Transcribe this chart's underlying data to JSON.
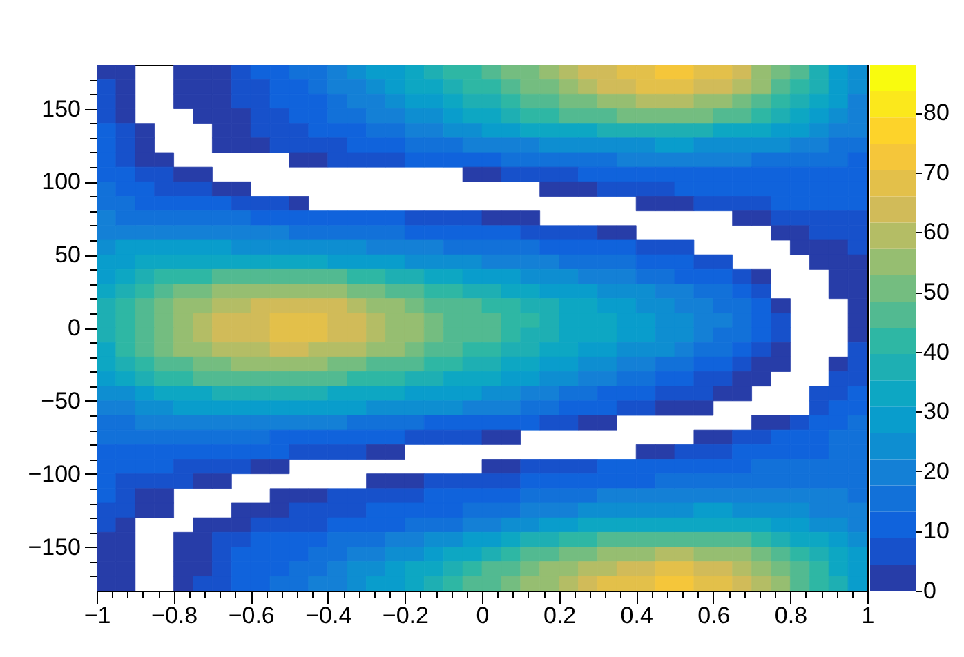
{
  "chart_data": {
    "type": "heatmap",
    "x": [
      -0.975,
      -0.925,
      -0.875,
      -0.825,
      -0.775,
      -0.725,
      -0.675,
      -0.625,
      -0.575,
      -0.525,
      -0.475,
      -0.425,
      -0.375,
      -0.325,
      -0.275,
      -0.225,
      -0.175,
      -0.125,
      -0.075,
      -0.025,
      0.025,
      0.075,
      0.125,
      0.175,
      0.225,
      0.275,
      0.325,
      0.375,
      0.425,
      0.475,
      0.525,
      0.575,
      0.625,
      0.675,
      0.725,
      0.775,
      0.825,
      0.875,
      0.925,
      0.975
    ],
    "cells": [
      [
        4,
        3,
        null,
        null,
        3,
        3,
        4,
        6,
        9,
        12,
        14,
        17,
        20,
        23,
        27,
        30,
        34,
        37,
        40,
        43,
        46,
        49,
        52,
        55,
        58,
        62,
        65,
        68,
        70,
        72,
        72,
        70,
        66,
        62,
        56,
        50,
        44,
        38,
        30,
        22
      ],
      [
        5,
        3,
        null,
        null,
        3,
        3,
        4,
        5,
        8,
        10,
        13,
        15,
        18,
        21,
        24,
        27,
        31,
        34,
        37,
        40,
        43,
        46,
        49,
        52,
        55,
        58,
        62,
        64,
        66,
        68,
        67,
        65,
        62,
        58,
        53,
        48,
        42,
        36,
        29,
        22
      ],
      [
        7,
        3,
        null,
        null,
        3,
        3,
        3,
        5,
        7,
        9,
        11,
        13,
        15,
        18,
        21,
        24,
        27,
        30,
        33,
        36,
        39,
        42,
        45,
        48,
        50,
        52,
        55,
        57,
        59,
        60,
        59,
        57,
        54,
        51,
        47,
        42,
        37,
        32,
        27,
        21
      ],
      [
        8,
        4,
        null,
        null,
        null,
        3,
        3,
        4,
        6,
        8,
        10,
        12,
        14,
        16,
        18,
        21,
        24,
        26,
        29,
        32,
        34,
        37,
        40,
        42,
        44,
        46,
        48,
        50,
        51,
        52,
        51,
        50,
        47,
        44,
        40,
        37,
        33,
        29,
        24,
        20
      ],
      [
        10,
        5,
        3,
        null,
        null,
        null,
        3,
        4,
        5,
        6,
        8,
        10,
        12,
        13,
        15,
        17,
        19,
        21,
        23,
        25,
        27,
        29,
        31,
        33,
        34,
        35,
        36,
        37,
        38,
        38,
        38,
        37,
        35,
        33,
        31,
        29,
        27,
        24,
        21,
        18
      ],
      [
        11,
        6,
        3,
        null,
        null,
        null,
        3,
        3,
        4,
        5,
        6,
        7,
        8,
        10,
        11,
        12,
        14,
        15,
        17,
        18,
        19,
        20,
        21,
        22,
        23,
        24,
        25,
        26,
        26,
        27,
        27,
        26,
        25,
        24,
        23,
        22,
        20,
        19,
        17,
        15
      ],
      [
        12,
        8,
        4,
        3,
        null,
        null,
        null,
        null,
        null,
        null,
        3,
        4,
        5,
        6,
        7,
        8,
        9,
        10,
        11,
        12,
        13,
        14,
        15,
        15,
        16,
        17,
        17,
        18,
        18,
        19,
        19,
        19,
        18,
        18,
        17,
        17,
        16,
        15,
        14,
        13
      ],
      [
        13,
        10,
        7,
        5,
        4,
        3,
        null,
        null,
        null,
        null,
        null,
        null,
        null,
        null,
        null,
        null,
        null,
        null,
        null,
        3,
        4,
        5,
        6,
        7,
        8,
        9,
        10,
        10,
        11,
        12,
        12,
        13,
        13,
        13,
        13,
        13,
        13,
        12,
        12,
        11
      ],
      [
        14,
        12,
        10,
        8,
        6,
        5,
        4,
        3,
        null,
        null,
        null,
        null,
        null,
        null,
        null,
        null,
        null,
        null,
        null,
        null,
        null,
        null,
        null,
        3,
        3,
        4,
        5,
        6,
        7,
        8,
        9,
        10,
        10,
        11,
        11,
        12,
        12,
        12,
        12,
        12
      ],
      [
        16,
        14,
        13,
        12,
        11,
        10,
        9,
        8,
        6,
        5,
        3,
        null,
        null,
        null,
        null,
        null,
        null,
        null,
        null,
        null,
        null,
        null,
        null,
        null,
        null,
        null,
        null,
        null,
        3,
        3,
        4,
        5,
        6,
        7,
        8,
        9,
        10,
        10,
        10,
        10
      ],
      [
        18,
        17,
        16,
        16,
        15,
        15,
        14,
        14,
        13,
        13,
        12,
        11,
        11,
        10,
        10,
        9,
        8,
        7,
        6,
        5,
        4,
        4,
        3,
        null,
        null,
        null,
        null,
        null,
        null,
        null,
        null,
        null,
        null,
        3,
        3,
        5,
        6,
        7,
        8,
        8
      ],
      [
        21,
        21,
        21,
        20,
        20,
        20,
        19,
        19,
        18,
        18,
        17,
        17,
        16,
        16,
        15,
        14,
        13,
        12,
        11,
        10,
        10,
        9,
        8,
        7,
        6,
        5,
        4,
        3,
        null,
        null,
        null,
        null,
        null,
        null,
        null,
        3,
        4,
        5,
        6,
        6
      ],
      [
        26,
        27,
        27,
        27,
        27,
        27,
        27,
        26,
        26,
        25,
        24,
        23,
        22,
        22,
        21,
        20,
        19,
        18,
        17,
        16,
        15,
        15,
        14,
        13,
        12,
        11,
        10,
        9,
        8,
        7,
        5,
        null,
        null,
        null,
        null,
        null,
        3,
        3,
        4,
        5
      ],
      [
        28,
        30,
        32,
        33,
        33,
        34,
        34,
        34,
        33,
        33,
        32,
        31,
        30,
        29,
        28,
        27,
        25,
        24,
        23,
        22,
        21,
        20,
        19,
        18,
        17,
        16,
        15,
        14,
        12,
        11,
        10,
        8,
        7,
        null,
        null,
        null,
        null,
        3,
        3,
        4
      ],
      [
        30,
        34,
        38,
        40,
        42,
        43,
        44,
        45,
        46,
        46,
        46,
        45,
        44,
        42,
        40,
        38,
        36,
        34,
        32,
        30,
        28,
        27,
        25,
        24,
        22,
        21,
        19,
        18,
        16,
        15,
        13,
        11,
        9,
        7,
        4,
        null,
        null,
        null,
        3,
        4
      ],
      [
        33,
        38,
        43,
        46,
        49,
        51,
        53,
        54,
        55,
        56,
        56,
        55,
        54,
        52,
        49,
        46,
        44,
        42,
        40,
        38,
        36,
        34,
        32,
        30,
        28,
        27,
        25,
        23,
        22,
        20,
        18,
        16,
        14,
        11,
        6,
        null,
        null,
        null,
        3,
        3
      ],
      [
        36,
        41,
        46,
        50,
        54,
        57,
        59,
        61,
        62,
        63,
        63,
        63,
        62,
        60,
        57,
        54,
        51,
        48,
        46,
        44,
        42,
        40,
        38,
        36,
        34,
        31,
        29,
        27,
        25,
        23,
        21,
        19,
        17,
        14,
        10,
        4,
        null,
        null,
        null,
        3
      ],
      [
        37,
        42,
        48,
        52,
        56,
        59,
        62,
        64,
        65,
        66,
        67,
        66,
        65,
        63,
        60,
        57,
        54,
        51,
        48,
        46,
        44,
        42,
        40,
        38,
        35,
        33,
        31,
        29,
        27,
        25,
        22,
        20,
        18,
        15,
        11,
        6,
        null,
        null,
        null,
        3
      ],
      [
        36,
        42,
        48,
        52,
        56,
        59,
        62,
        64,
        65,
        66,
        66,
        66,
        64,
        62,
        59,
        56,
        53,
        50,
        48,
        46,
        44,
        42,
        39,
        37,
        35,
        33,
        31,
        29,
        27,
        25,
        22,
        19,
        17,
        14,
        10,
        6,
        null,
        null,
        null,
        4
      ],
      [
        34,
        40,
        45,
        49,
        53,
        56,
        58,
        60,
        61,
        62,
        62,
        61,
        60,
        58,
        56,
        53,
        50,
        47,
        45,
        43,
        41,
        39,
        36,
        34,
        32,
        30,
        28,
        26,
        24,
        22,
        19,
        17,
        15,
        12,
        8,
        4,
        null,
        null,
        null,
        5
      ],
      [
        31,
        36,
        41,
        45,
        48,
        50,
        52,
        53,
        54,
        54,
        54,
        53,
        52,
        50,
        48,
        46,
        44,
        42,
        40,
        38,
        36,
        34,
        31,
        29,
        27,
        25,
        23,
        21,
        19,
        17,
        14,
        12,
        10,
        6,
        4,
        3,
        null,
        null,
        3,
        7
      ],
      [
        27,
        32,
        36,
        40,
        42,
        44,
        45,
        46,
        46,
        46,
        46,
        45,
        44,
        43,
        41,
        40,
        38,
        36,
        34,
        33,
        31,
        29,
        27,
        25,
        23,
        21,
        19,
        17,
        14,
        12,
        10,
        8,
        6,
        4,
        3,
        null,
        null,
        null,
        6,
        8
      ],
      [
        22,
        26,
        30,
        32,
        34,
        35,
        36,
        37,
        37,
        37,
        37,
        36,
        35,
        34,
        33,
        32,
        30,
        29,
        28,
        27,
        25,
        23,
        21,
        19,
        17,
        15,
        13,
        11,
        9,
        7,
        6,
        5,
        4,
        3,
        null,
        null,
        null,
        5,
        8,
        10
      ],
      [
        18,
        21,
        24,
        26,
        27,
        28,
        29,
        29,
        29,
        29,
        29,
        28,
        28,
        27,
        26,
        25,
        24,
        23,
        22,
        21,
        20,
        18,
        17,
        15,
        13,
        11,
        9,
        7,
        5,
        4,
        3,
        3,
        null,
        null,
        null,
        null,
        null,
        8,
        10,
        12
      ],
      [
        15,
        17,
        18,
        19,
        20,
        20,
        21,
        21,
        21,
        20,
        20,
        19,
        18,
        17,
        16,
        15,
        14,
        13,
        13,
        12,
        12,
        11,
        10,
        8,
        6,
        4,
        3,
        null,
        null,
        null,
        null,
        null,
        null,
        null,
        3,
        4,
        7,
        10,
        12,
        14
      ],
      [
        14,
        14,
        14,
        15,
        15,
        15,
        15,
        14,
        14,
        13,
        13,
        12,
        12,
        11,
        10,
        9,
        8,
        7,
        6,
        5,
        4,
        3,
        null,
        null,
        null,
        null,
        null,
        null,
        null,
        null,
        null,
        3,
        4,
        5,
        7,
        9,
        11,
        13,
        15,
        16
      ],
      [
        12,
        12,
        12,
        12,
        12,
        11,
        11,
        10,
        10,
        9,
        8,
        7,
        6,
        5,
        4,
        3,
        null,
        null,
        null,
        null,
        null,
        null,
        null,
        null,
        null,
        null,
        null,
        null,
        3,
        4,
        6,
        7,
        8,
        9,
        10,
        11,
        12,
        13,
        14,
        15
      ],
      [
        10,
        10,
        10,
        9,
        8,
        7,
        6,
        5,
        4,
        3,
        null,
        null,
        null,
        null,
        null,
        null,
        null,
        null,
        null,
        null,
        3,
        4,
        5,
        6,
        7,
        8,
        9,
        10,
        10,
        11,
        12,
        12,
        13,
        13,
        14,
        14,
        15,
        15,
        16,
        16
      ],
      [
        9,
        8,
        7,
        6,
        5,
        4,
        3,
        null,
        null,
        null,
        null,
        null,
        null,
        null,
        3,
        3,
        4,
        5,
        6,
        6,
        7,
        8,
        9,
        10,
        11,
        11,
        12,
        13,
        13,
        14,
        15,
        15,
        16,
        16,
        17,
        17,
        17,
        17,
        17,
        16
      ],
      [
        9,
        6,
        4,
        3,
        null,
        null,
        null,
        null,
        null,
        3,
        3,
        4,
        5,
        5,
        6,
        7,
        8,
        9,
        10,
        11,
        12,
        13,
        14,
        15,
        16,
        17,
        18,
        19,
        20,
        20,
        21,
        21,
        21,
        21,
        20,
        20,
        19,
        19,
        18,
        17
      ],
      [
        7,
        5,
        3,
        3,
        null,
        null,
        null,
        3,
        3,
        4,
        5,
        6,
        7,
        8,
        9,
        10,
        11,
        12,
        13,
        14,
        15,
        17,
        18,
        19,
        20,
        22,
        23,
        24,
        25,
        26,
        26,
        27,
        27,
        26,
        25,
        24,
        22,
        21,
        19,
        18
      ],
      [
        5,
        3,
        null,
        null,
        null,
        3,
        3,
        4,
        5,
        6,
        7,
        8,
        9,
        10,
        11,
        13,
        14,
        15,
        17,
        19,
        21,
        23,
        25,
        27,
        29,
        31,
        32,
        33,
        34,
        35,
        35,
        35,
        34,
        33,
        31,
        29,
        27,
        24,
        22,
        20
      ],
      [
        4,
        3,
        null,
        null,
        3,
        3,
        5,
        7,
        9,
        10,
        11,
        12,
        14,
        15,
        16,
        18,
        20,
        22,
        24,
        27,
        30,
        33,
        36,
        39,
        41,
        43,
        45,
        46,
        47,
        48,
        48,
        47,
        46,
        44,
        42,
        39,
        35,
        31,
        27,
        24
      ],
      [
        4,
        3,
        null,
        null,
        3,
        4,
        7,
        9,
        11,
        12,
        13,
        15,
        17,
        19,
        21,
        23,
        26,
        29,
        32,
        35,
        38,
        41,
        44,
        47,
        50,
        52,
        54,
        56,
        57,
        58,
        58,
        57,
        55,
        53,
        50,
        46,
        41,
        36,
        31,
        27
      ],
      [
        3,
        3,
        null,
        null,
        3,
        4,
        7,
        10,
        12,
        13,
        14,
        17,
        19,
        22,
        25,
        28,
        31,
        35,
        38,
        41,
        44,
        47,
        50,
        53,
        56,
        59,
        61,
        63,
        65,
        66,
        66,
        65,
        63,
        60,
        56,
        51,
        45,
        40,
        34,
        29
      ],
      [
        3,
        3,
        null,
        null,
        3,
        5,
        8,
        10,
        12,
        14,
        16,
        18,
        21,
        24,
        27,
        30,
        34,
        37,
        41,
        44,
        47,
        50,
        53,
        57,
        60,
        63,
        66,
        68,
        70,
        71,
        71,
        70,
        68,
        65,
        60,
        54,
        48,
        42,
        36,
        30
      ]
    ],
    "xlim": [
      -1,
      1
    ],
    "xticks": [
      -1,
      {
        "value": -0.96,
        "label": null
      },
      {
        "value": -0.92,
        "label": null
      },
      {
        "value": -0.88,
        "label": null
      },
      {
        "value": -0.84,
        "label": null
      },
      -0.8,
      {
        "value": -0.76,
        "label": null
      },
      {
        "value": -0.72,
        "label": null
      },
      {
        "value": -0.68,
        "label": null
      },
      {
        "value": -0.64,
        "label": null
      },
      -0.6,
      {
        "value": -0.56,
        "label": null
      },
      {
        "value": -0.52,
        "label": null
      },
      {
        "value": -0.48,
        "label": null
      },
      {
        "value": -0.44,
        "label": null
      },
      -0.4,
      {
        "value": -0.36,
        "label": null
      },
      {
        "value": -0.32,
        "label": null
      },
      {
        "value": -0.28,
        "label": null
      },
      {
        "value": -0.24,
        "label": null
      },
      -0.2,
      {
        "value": -0.16,
        "label": null
      },
      {
        "value": -0.12,
        "label": null
      },
      {
        "value": -0.08,
        "label": null
      },
      {
        "value": -0.04,
        "label": null
      },
      0,
      {
        "value": 0.04,
        "label": null
      },
      {
        "value": 0.08,
        "label": null
      },
      {
        "value": 0.12,
        "label": null
      },
      {
        "value": 0.16,
        "label": null
      },
      0.2,
      {
        "value": 0.24,
        "label": null
      },
      {
        "value": 0.28,
        "label": null
      },
      {
        "value": 0.32,
        "label": null
      },
      {
        "value": 0.36,
        "label": null
      },
      0.4,
      {
        "value": 0.44,
        "label": null
      },
      {
        "value": 0.48,
        "label": null
      },
      {
        "value": 0.52,
        "label": null
      },
      {
        "value": 0.56,
        "label": null
      },
      0.6,
      {
        "value": 0.64,
        "label": null
      },
      {
        "value": 0.68,
        "label": null
      },
      {
        "value": 0.72,
        "label": null
      },
      {
        "value": 0.76,
        "label": null
      },
      0.8,
      {
        "value": 0.84,
        "label": null
      },
      {
        "value": 0.88,
        "label": null
      },
      {
        "value": 0.92,
        "label": null
      },
      {
        "value": 0.96,
        "label": null
      },
      1
    ],
    "ylim": [
      -180,
      180
    ],
    "yticks": [
      {
        "value": -170,
        "label": null
      },
      {
        "value": -160,
        "label": null
      },
      -150,
      {
        "value": -140,
        "label": null
      },
      {
        "value": -130,
        "label": null
      },
      {
        "value": -120,
        "label": null
      },
      {
        "value": -110,
        "label": null
      },
      -100,
      {
        "value": -90,
        "label": null
      },
      {
        "value": -80,
        "label": null
      },
      {
        "value": -70,
        "label": null
      },
      {
        "value": -60,
        "label": null
      },
      -50,
      {
        "value": -40,
        "label": null
      },
      {
        "value": -30,
        "label": null
      },
      {
        "value": -20,
        "label": null
      },
      {
        "value": -10,
        "label": null
      },
      0,
      {
        "value": 10,
        "label": null
      },
      {
        "value": 20,
        "label": null
      },
      {
        "value": 30,
        "label": null
      },
      {
        "value": 40,
        "label": null
      },
      50,
      {
        "value": 60,
        "label": null
      },
      {
        "value": 70,
        "label": null
      },
      {
        "value": 80,
        "label": null
      },
      {
        "value": 90,
        "label": null
      },
      100,
      {
        "value": 110,
        "label": null
      },
      {
        "value": 120,
        "label": null
      },
      {
        "value": 130,
        "label": null
      },
      {
        "value": 140,
        "label": null
      },
      150,
      {
        "value": 160,
        "label": null
      },
      {
        "value": 170,
        "label": null
      }
    ],
    "clim": [
      0,
      88
    ],
    "cticks": [
      0,
      10,
      20,
      30,
      40,
      50,
      60,
      70,
      80
    ]
  }
}
